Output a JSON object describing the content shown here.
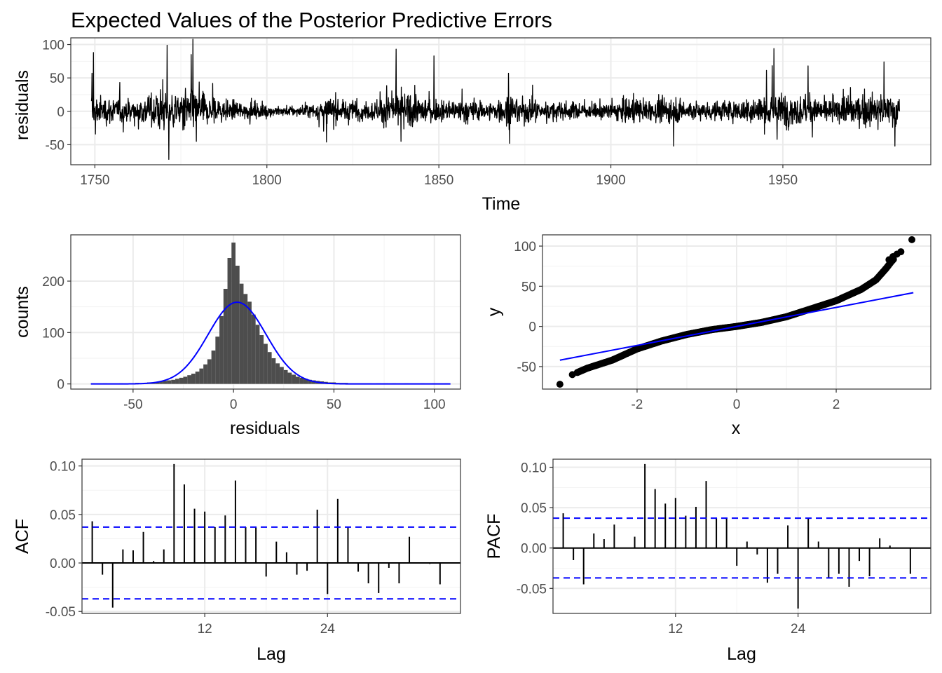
{
  "figure_title": "Expected Values of the Posterior Predictive Errors",
  "colors": {
    "line": "#000000",
    "fit": "#0000ff",
    "bars": "#4d4d4d",
    "grid": "#ebebeb",
    "grid_minor": "#f2f2f2",
    "border": "#333333"
  },
  "chart_data": [
    {
      "id": "ts",
      "type": "line",
      "title": "",
      "xlabel": "Time",
      "ylabel": "residuals",
      "xlim": [
        1743,
        1993
      ],
      "ylim": [
        -80,
        110
      ],
      "xticks": [
        1750,
        1800,
        1850,
        1900,
        1950
      ],
      "xtick_labels": [
        "1750",
        "1800",
        "1850",
        "1900",
        "1950"
      ],
      "yticks": [
        -50,
        0,
        50,
        100
      ],
      "ytick_labels": [
        "-50",
        "0",
        "50",
        "100"
      ],
      "x_start": 1749,
      "x_end": 1983.9,
      "n": 2820,
      "base_scale": 12,
      "activity_envelope": [
        [
          1749,
          1.4
        ],
        [
          1760,
          1.2
        ],
        [
          1770,
          1.9
        ],
        [
          1779,
          1.9
        ],
        [
          1790,
          0.9
        ],
        [
          1805,
          0.5
        ],
        [
          1812,
          0.6
        ],
        [
          1818,
          1.2
        ],
        [
          1830,
          0.9
        ],
        [
          1837,
          1.8
        ],
        [
          1845,
          1.4
        ],
        [
          1850,
          1.0
        ],
        [
          1858,
          1.1
        ],
        [
          1865,
          0.9
        ],
        [
          1871,
          1.6
        ],
        [
          1880,
          0.9
        ],
        [
          1886,
          0.9
        ],
        [
          1894,
          0.7
        ],
        [
          1905,
          1.3
        ],
        [
          1912,
          0.9
        ],
        [
          1918,
          1.4
        ],
        [
          1925,
          0.9
        ],
        [
          1935,
          1.0
        ],
        [
          1940,
          1.3
        ],
        [
          1947,
          1.8
        ],
        [
          1957,
          1.4
        ],
        [
          1963,
          1.0
        ],
        [
          1970,
          1.5
        ],
        [
          1980,
          1.6
        ],
        [
          1984,
          1.5
        ]
      ],
      "spikes": [
        {
          "t": 1749.2,
          "v": 57
        },
        {
          "t": 1749.6,
          "v": 88
        },
        {
          "t": 1750.2,
          "v": -34
        },
        {
          "t": 1771.0,
          "v": 99
        },
        {
          "t": 1771.5,
          "v": -72
        },
        {
          "t": 1778.5,
          "v": 108
        },
        {
          "t": 1778.0,
          "v": 85
        },
        {
          "t": 1779.5,
          "v": -45
        },
        {
          "t": 1817.3,
          "v": -46
        },
        {
          "t": 1837.6,
          "v": 93
        },
        {
          "t": 1839.0,
          "v": -45
        },
        {
          "t": 1848.6,
          "v": 83
        },
        {
          "t": 1870.2,
          "v": 57
        },
        {
          "t": 1870.6,
          "v": -48
        },
        {
          "t": 1918.2,
          "v": -52
        },
        {
          "t": 1947.4,
          "v": 94
        },
        {
          "t": 1948.3,
          "v": -42
        },
        {
          "t": 1957.3,
          "v": 68
        },
        {
          "t": 1979.4,
          "v": 74
        },
        {
          "t": 1982.6,
          "v": -52
        }
      ]
    },
    {
      "id": "hist",
      "type": "histogram",
      "title": "",
      "xlabel": "residuals",
      "ylabel": "counts",
      "xlim": [
        -81,
        113
      ],
      "ylim": [
        -10,
        290
      ],
      "xticks": [
        -50,
        0,
        50,
        100
      ],
      "xtick_labels": [
        "-50",
        "0",
        "50",
        "100"
      ],
      "yticks": [
        0,
        100,
        200
      ],
      "ytick_labels": [
        "0",
        "100",
        "200"
      ],
      "bin_start": -71,
      "bin_width": 2,
      "counts": [
        1,
        0,
        0,
        1,
        0,
        0,
        0,
        1,
        0,
        0,
        1,
        2,
        1,
        2,
        3,
        3,
        4,
        5,
        6,
        7,
        8,
        10,
        12,
        14,
        17,
        20,
        24,
        30,
        38,
        48,
        65,
        92,
        132,
        185,
        245,
        275,
        230,
        195,
        175,
        160,
        135,
        115,
        95,
        78,
        62,
        50,
        40,
        33,
        27,
        22,
        18,
        14,
        12,
        10,
        8,
        7,
        6,
        5,
        4,
        3,
        3,
        2,
        2,
        2,
        1,
        1,
        1,
        1,
        1,
        1,
        0,
        1,
        0,
        1,
        0,
        1,
        0,
        0,
        1,
        0,
        0,
        0,
        1,
        0,
        0,
        1,
        0,
        0,
        1
      ],
      "normal_fit": {
        "mean": 1.8,
        "sd": 14.4,
        "peak": 159,
        "x_range": [
          -71,
          108
        ]
      }
    },
    {
      "id": "qq",
      "type": "scatter",
      "title": "",
      "xlabel": "x",
      "ylabel": "y",
      "xlim": [
        -3.9,
        3.9
      ],
      "ylim": [
        -78,
        114
      ],
      "xticks": [
        -2,
        0,
        2
      ],
      "xtick_labels": [
        "-2",
        "0",
        "2"
      ],
      "yticks": [
        -50,
        0,
        50,
        100
      ],
      "ytick_labels": [
        "-50",
        "0",
        "50",
        "100"
      ],
      "theoretical_range": [
        -3.55,
        3.55
      ],
      "ref_line": {
        "x": [
          -3.55,
          3.55
        ],
        "y": [
          -42,
          42
        ]
      },
      "quantile_curve": [
        [
          -3.55,
          -72
        ],
        [
          -3.3,
          -60
        ],
        [
          -3.0,
          -52
        ],
        [
          -2.5,
          -42
        ],
        [
          -2.0,
          -28
        ],
        [
          -1.5,
          -18
        ],
        [
          -1.0,
          -10
        ],
        [
          -0.5,
          -4
        ],
        [
          0,
          0
        ],
        [
          0.5,
          5
        ],
        [
          1.0,
          12
        ],
        [
          1.5,
          22
        ],
        [
          2.0,
          32
        ],
        [
          2.5,
          46
        ],
        [
          2.8,
          58
        ],
        [
          3.0,
          72
        ],
        [
          3.1,
          80
        ],
        [
          3.2,
          87
        ],
        [
          3.35,
          93
        ],
        [
          3.5,
          108
        ]
      ],
      "tail_points": [
        {
          "x": -3.55,
          "y": -72
        },
        {
          "x": -3.3,
          "y": -60
        },
        {
          "x": 3.06,
          "y": 83
        },
        {
          "x": 3.14,
          "y": 87
        },
        {
          "x": 3.22,
          "y": 90
        },
        {
          "x": 3.3,
          "y": 93
        },
        {
          "x": 3.52,
          "y": 108
        }
      ]
    },
    {
      "id": "acf",
      "type": "bar",
      "title": "",
      "xlabel": "Lag",
      "ylabel": "ACF",
      "xlim": [
        0,
        37
      ],
      "ylim": [
        -0.052,
        0.107
      ],
      "xticks": [
        12,
        24
      ],
      "xtick_labels": [
        "12",
        "24"
      ],
      "yticks": [
        -0.05,
        0,
        0.05,
        0.1
      ],
      "ytick_labels": [
        "-0.05",
        "0.00",
        "0.05",
        "0.10"
      ],
      "lags": [
        1,
        2,
        3,
        4,
        5,
        6,
        7,
        8,
        9,
        10,
        11,
        12,
        13,
        14,
        15,
        16,
        17,
        18,
        19,
        20,
        21,
        22,
        23,
        24,
        25,
        26,
        27,
        28,
        29,
        30,
        31,
        32,
        33,
        34,
        35,
        36
      ],
      "values": [
        0.043,
        -0.012,
        -0.046,
        0.014,
        0.013,
        0.032,
        0.002,
        0.014,
        0.102,
        0.081,
        0.056,
        0.053,
        0.037,
        0.049,
        0.085,
        0.037,
        0.037,
        -0.014,
        0.022,
        0.011,
        -0.012,
        -0.008,
        0.055,
        -0.032,
        0.066,
        0.037,
        -0.009,
        -0.021,
        -0.031,
        -0.005,
        -0.021,
        0.027,
        0,
        -0.001,
        -0.022,
        0
      ],
      "conf_bound": 0.037
    },
    {
      "id": "pacf",
      "type": "bar",
      "title": "",
      "xlabel": "Lag",
      "ylabel": "PACF",
      "xlim": [
        0,
        37
      ],
      "ylim": [
        -0.081,
        0.11
      ],
      "xticks": [
        12,
        24
      ],
      "xtick_labels": [
        "12",
        "24"
      ],
      "yticks": [
        -0.05,
        0,
        0.05,
        0.1
      ],
      "ytick_labels": [
        "-0.05",
        "0.00",
        "0.05",
        "0.10"
      ],
      "lags": [
        1,
        2,
        3,
        4,
        5,
        6,
        7,
        8,
        9,
        10,
        11,
        12,
        13,
        14,
        15,
        16,
        17,
        18,
        19,
        20,
        21,
        22,
        23,
        24,
        25,
        26,
        27,
        28,
        29,
        30,
        31,
        32,
        33,
        34,
        35,
        36
      ],
      "values": [
        0.043,
        -0.015,
        -0.045,
        0.018,
        0.011,
        0.029,
        0,
        0.014,
        0.104,
        0.073,
        0.055,
        0.062,
        0.04,
        0.051,
        0.083,
        0.037,
        0.037,
        -0.022,
        0.008,
        -0.008,
        -0.043,
        -0.032,
        0.028,
        -0.075,
        0.037,
        0.008,
        -0.037,
        -0.032,
        -0.048,
        -0.016,
        -0.035,
        0.012,
        0.003,
        0,
        -0.032,
        0
      ],
      "conf_bound": 0.037
    }
  ]
}
